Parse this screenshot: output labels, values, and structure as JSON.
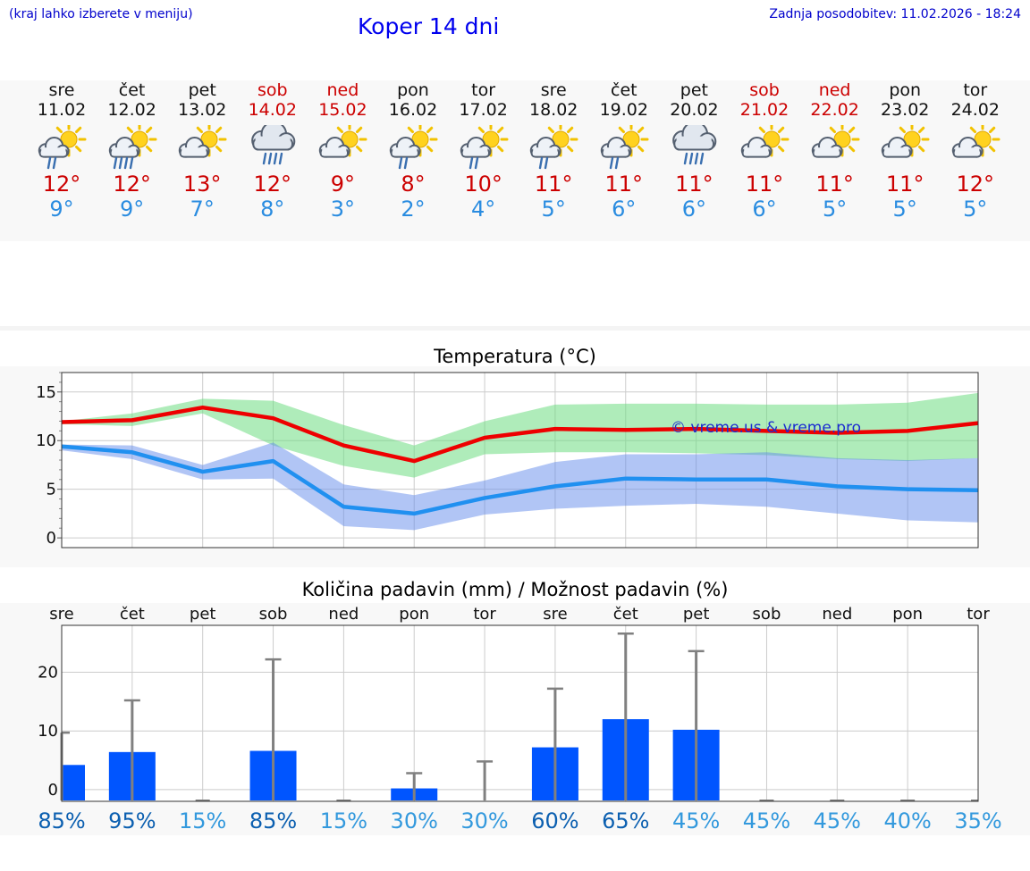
{
  "header": {
    "menu_hint": "(kraj lahko izberete v meniju)",
    "title": "Koper 14 dni",
    "last_update": "Zadnja posodobitev: 11.02.2026 - 18:24"
  },
  "colors": {
    "max_temp": "#cc0000",
    "min_temp": "#2a8ce0",
    "bar": "#0055ff",
    "weekend": "#cc0000"
  },
  "days": [
    {
      "name": "sre",
      "date": "11.02",
      "weekend": false,
      "icon": "sun-cloud-rain-icon",
      "tmax": "12°",
      "tmin": "9°"
    },
    {
      "name": "čet",
      "date": "12.02",
      "weekend": false,
      "icon": "sun-cloud-heavy-rain-icon",
      "tmax": "12°",
      "tmin": "9°"
    },
    {
      "name": "pet",
      "date": "13.02",
      "weekend": false,
      "icon": "sun-cloud-icon",
      "tmax": "13°",
      "tmin": "7°"
    },
    {
      "name": "sob",
      "date": "14.02",
      "weekend": true,
      "icon": "cloud-rain-icon",
      "tmax": "12°",
      "tmin": "8°"
    },
    {
      "name": "ned",
      "date": "15.02",
      "weekend": true,
      "icon": "sun-cloud-icon",
      "tmax": "9°",
      "tmin": "3°"
    },
    {
      "name": "pon",
      "date": "16.02",
      "weekend": false,
      "icon": "sun-cloud-rain-icon",
      "tmax": "8°",
      "tmin": "2°"
    },
    {
      "name": "tor",
      "date": "17.02",
      "weekend": false,
      "icon": "sun-cloud-rain-icon",
      "tmax": "10°",
      "tmin": "4°"
    },
    {
      "name": "sre",
      "date": "18.02",
      "weekend": false,
      "icon": "sun-cloud-rain-icon",
      "tmax": "11°",
      "tmin": "5°"
    },
    {
      "name": "čet",
      "date": "19.02",
      "weekend": false,
      "icon": "sun-cloud-rain-icon",
      "tmax": "11°",
      "tmin": "6°"
    },
    {
      "name": "pet",
      "date": "20.02",
      "weekend": false,
      "icon": "cloud-rain-icon",
      "tmax": "11°",
      "tmin": "6°"
    },
    {
      "name": "sob",
      "date": "21.02",
      "weekend": true,
      "icon": "sun-cloud-icon",
      "tmax": "11°",
      "tmin": "6°"
    },
    {
      "name": "ned",
      "date": "22.02",
      "weekend": true,
      "icon": "sun-cloud-icon",
      "tmax": "11°",
      "tmin": "5°"
    },
    {
      "name": "pon",
      "date": "23.02",
      "weekend": false,
      "icon": "sun-cloud-icon",
      "tmax": "11°",
      "tmin": "5°"
    },
    {
      "name": "tor",
      "date": "24.02",
      "weekend": false,
      "icon": "sun-cloud-icon",
      "tmax": "12°",
      "tmin": "5°"
    }
  ],
  "chart_data": [
    {
      "type": "line",
      "title": "Temperatura (°C)",
      "ylim": [
        -1,
        17
      ],
      "yticks": [
        0,
        5,
        10,
        15
      ],
      "watermark": "© vreme.us & vreme.pro",
      "x": [
        0,
        1,
        2,
        3,
        4,
        5,
        6,
        7,
        8,
        9,
        10,
        11,
        12,
        13
      ],
      "series": [
        {
          "name": "max",
          "values": [
            11.9,
            12.1,
            13.4,
            12.3,
            9.5,
            7.9,
            10.3,
            11.2,
            11.1,
            11.2,
            11.0,
            10.8,
            11.0,
            11.8
          ]
        },
        {
          "name": "min",
          "values": [
            9.4,
            8.8,
            6.8,
            7.9,
            3.2,
            2.5,
            4.1,
            5.3,
            6.1,
            6.0,
            6.0,
            5.3,
            5.0,
            4.9
          ]
        }
      ],
      "max_band_low": [
        11.7,
        11.5,
        12.8,
        9.5,
        7.4,
        6.2,
        8.6,
        8.8,
        8.8,
        8.7,
        8.5,
        8.1,
        7.9,
        8.2
      ],
      "max_band_high": [
        12.0,
        12.8,
        14.3,
        14.1,
        11.6,
        9.5,
        12.0,
        13.7,
        13.8,
        13.8,
        13.7,
        13.7,
        13.9,
        14.9
      ],
      "min_band_low": [
        9.0,
        8.1,
        6.0,
        6.1,
        1.2,
        0.8,
        2.4,
        3.0,
        3.3,
        3.5,
        3.2,
        2.5,
        1.8,
        1.6
      ],
      "min_band_high": [
        9.6,
        9.5,
        7.5,
        9.8,
        5.5,
        4.4,
        5.9,
        7.8,
        8.6,
        8.6,
        8.8,
        8.2,
        8.0,
        8.2
      ]
    },
    {
      "type": "bar",
      "title": "Količina padavin (mm) / Možnost padavin (%)",
      "categories": [
        "sre",
        "čet",
        "pet",
        "sob",
        "ned",
        "pon",
        "tor",
        "sre",
        "čet",
        "pet",
        "sob",
        "ned",
        "pon",
        "tor"
      ],
      "ylim": [
        -2,
        28
      ],
      "yticks": [
        0,
        10,
        20
      ],
      "values": [
        4.2,
        6.4,
        0,
        6.6,
        0,
        0.2,
        0,
        7.2,
        12.0,
        10.2,
        0,
        0,
        0,
        0
      ],
      "error_high": [
        9.7,
        15.2,
        0,
        22.2,
        0,
        2.8,
        4.8,
        17.2,
        26.6,
        23.6,
        0,
        0,
        0,
        0
      ],
      "probability": [
        "85%",
        "95%",
        "15%",
        "85%",
        "15%",
        "30%",
        "30%",
        "60%",
        "65%",
        "45%",
        "45%",
        "45%",
        "40%",
        "35%"
      ],
      "probability_colors": [
        "#0b5fb0",
        "#0b5fb0",
        "#3399dd",
        "#0b5fb0",
        "#3399dd",
        "#3399dd",
        "#3399dd",
        "#0b5fb0",
        "#0b5fb0",
        "#3399dd",
        "#3399dd",
        "#3399dd",
        "#3399dd",
        "#3399dd"
      ]
    }
  ]
}
